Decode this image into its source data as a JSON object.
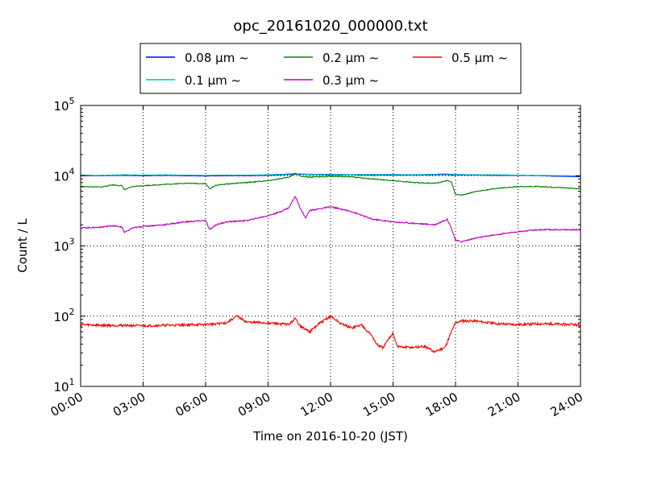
{
  "chart_data": {
    "type": "line",
    "title": "opc_20161020_000000.txt",
    "xlabel": "Time on 2016-10-20 (JST)",
    "ylabel": "Count / L",
    "xlim_hours": [
      0,
      24
    ],
    "ylim": [
      10,
      100000
    ],
    "yscale": "log",
    "grid": true,
    "legend_position": "top-center",
    "x_ticks": [
      "00:00",
      "03:00",
      "06:00",
      "09:00",
      "12:00",
      "15:00",
      "18:00",
      "21:00",
      "24:00"
    ],
    "y_ticks": [
      {
        "base": "10",
        "exp": "1"
      },
      {
        "base": "10",
        "exp": "2"
      },
      {
        "base": "10",
        "exp": "3"
      },
      {
        "base": "10",
        "exp": "4"
      },
      {
        "base": "10",
        "exp": "5"
      }
    ],
    "series": [
      {
        "name": "0.08 μm ~",
        "color": "#0000ff",
        "x": [
          0,
          1,
          2,
          3,
          4,
          5,
          6,
          7,
          8,
          9,
          10,
          10.3,
          11,
          12,
          13,
          14,
          15,
          16,
          17,
          17.5,
          18,
          19,
          20,
          21,
          22,
          23,
          24
        ],
        "y": [
          10000,
          10000,
          10100,
          10000,
          10100,
          10000,
          9900,
          10000,
          10000,
          10100,
          10400,
          10500,
          10400,
          10300,
          10300,
          10200,
          10200,
          10200,
          10300,
          10400,
          10200,
          10200,
          10100,
          10100,
          10000,
          9800,
          9700
        ]
      },
      {
        "name": "0.1 μm ~",
        "color": "#00bfbf",
        "x": [
          0,
          1,
          2,
          3,
          4,
          5,
          6,
          7,
          8,
          9,
          10,
          10.3,
          11,
          12,
          13,
          14,
          15,
          16,
          17,
          17.5,
          18,
          19,
          20,
          21,
          22,
          23,
          24
        ],
        "y": [
          10200,
          10100,
          10300,
          10200,
          10300,
          10200,
          10100,
          10200,
          10200,
          10300,
          10600,
          10700,
          10500,
          10500,
          10400,
          10400,
          10400,
          10300,
          10500,
          10600,
          10400,
          10300,
          10300,
          10200,
          10100,
          10000,
          9900
        ]
      },
      {
        "name": "0.2 μm ~",
        "color": "#008000",
        "x": [
          0,
          1,
          1.5,
          2,
          2.1,
          2.5,
          3,
          4,
          5,
          6,
          6.2,
          6.5,
          7,
          8,
          9,
          10,
          10.3,
          10.6,
          11,
          12,
          13,
          14,
          15,
          16,
          17,
          17.6,
          17.8,
          18,
          18.3,
          19,
          20,
          21,
          22,
          23,
          24
        ],
        "y": [
          7000,
          6900,
          7400,
          7200,
          6300,
          7000,
          7200,
          7500,
          7800,
          7700,
          6500,
          7300,
          7600,
          8000,
          8500,
          9500,
          10800,
          9800,
          9500,
          9800,
          9600,
          9000,
          8500,
          8000,
          7800,
          8500,
          8100,
          5400,
          5300,
          6000,
          6600,
          7000,
          7000,
          6800,
          6500
        ]
      },
      {
        "name": "0.3 μm ~",
        "color": "#bf00bf",
        "x": [
          0,
          1,
          1.5,
          2,
          2.1,
          2.5,
          3,
          4,
          5,
          6,
          6.2,
          6.5,
          7,
          8,
          9,
          9.5,
          10,
          10.3,
          10.6,
          10.8,
          11,
          12,
          13,
          14,
          15,
          16,
          17,
          17.6,
          17.8,
          18,
          18.3,
          19,
          20,
          21,
          22,
          23,
          24
        ],
        "y": [
          1800,
          1850,
          1950,
          1850,
          1550,
          1800,
          1900,
          2000,
          2200,
          2300,
          1700,
          2000,
          2200,
          2300,
          2700,
          3000,
          3500,
          5100,
          3200,
          2500,
          3200,
          3600,
          3100,
          2400,
          2200,
          2100,
          2000,
          2400,
          1800,
          1200,
          1150,
          1300,
          1450,
          1600,
          1700,
          1700,
          1700
        ]
      },
      {
        "name": "0.5 μm ~",
        "color": "#ff0000",
        "x": [
          0,
          1,
          2,
          3,
          4,
          5,
          6,
          7,
          7.5,
          8,
          9,
          10,
          10.3,
          10.6,
          11,
          11.5,
          12,
          12.5,
          13,
          13.5,
          14,
          14.2,
          14.5,
          15,
          15.2,
          15.5,
          16,
          16.5,
          17,
          17.5,
          17.8,
          18,
          18.3,
          19,
          20,
          21,
          22,
          23,
          24
        ],
        "y": [
          76,
          74,
          74,
          73,
          74,
          75,
          76,
          80,
          100,
          82,
          80,
          76,
          92,
          70,
          60,
          80,
          100,
          78,
          68,
          75,
          52,
          40,
          35,
          58,
          37,
          36,
          36,
          37,
          31,
          36,
          60,
          80,
          86,
          85,
          78,
          76,
          78,
          77,
          75
        ]
      }
    ]
  }
}
